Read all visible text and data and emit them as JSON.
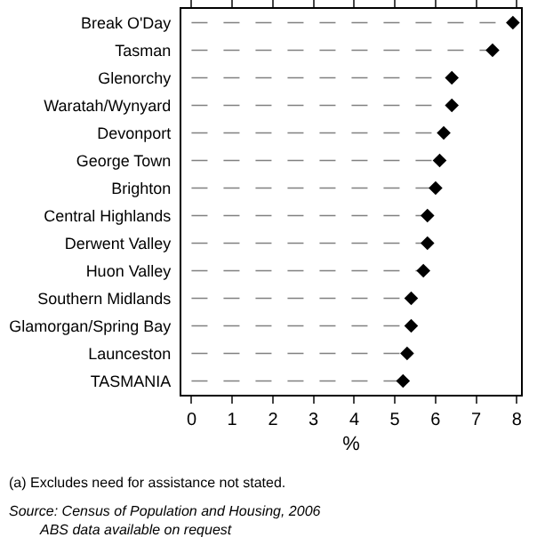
{
  "chart_data": {
    "type": "lollipop",
    "orientation": "horizontal",
    "categories": [
      "Break O'Day",
      "Tasman",
      "Glenorchy",
      "Waratah/Wynyard",
      "Devonport",
      "George Town",
      "Brighton",
      "Central Highlands",
      "Derwent Valley",
      "Huon Valley",
      "Southern Midlands",
      "Glamorgan/Spring Bay",
      "Launceston",
      "TASMANIA"
    ],
    "values": [
      7.9,
      7.4,
      6.4,
      6.4,
      6.2,
      6.1,
      6.0,
      5.8,
      5.8,
      5.7,
      5.4,
      5.4,
      5.3,
      5.2
    ],
    "color": "#000000",
    "marker": "diamond",
    "line_style": "dashed",
    "xlim": [
      -0.25,
      8.1
    ],
    "xticks": [
      0,
      1,
      2,
      3,
      4,
      5,
      6,
      7,
      8
    ],
    "xlabel": "%",
    "grid": false,
    "annotations": [
      "(a) Excludes need for assistance not stated.",
      "Source: Census of Population and Housing, 2006\nABS data available on request"
    ]
  }
}
